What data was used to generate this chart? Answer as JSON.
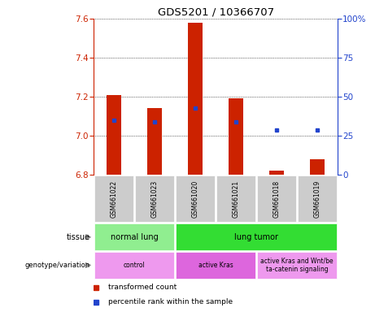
{
  "title": "GDS5201 / 10366707",
  "samples": [
    "GSM661022",
    "GSM661023",
    "GSM661020",
    "GSM661021",
    "GSM661018",
    "GSM661019"
  ],
  "bar_bottoms": [
    6.8,
    6.8,
    6.8,
    6.8,
    6.8,
    6.8
  ],
  "bar_tops": [
    7.21,
    7.14,
    7.58,
    7.19,
    6.82,
    6.88
  ],
  "blue_y": [
    7.08,
    7.07,
    7.14,
    7.07,
    7.03,
    7.03
  ],
  "blue_show": [
    true,
    true,
    true,
    true,
    true,
    true
  ],
  "ylim_left": [
    6.8,
    7.6
  ],
  "yticks_left": [
    6.8,
    7.0,
    7.2,
    7.4,
    7.6
  ],
  "yticks_right": [
    0,
    25,
    50,
    75,
    100
  ],
  "bar_color": "#cc2200",
  "blue_color": "#2244cc",
  "tissue_groups": [
    {
      "label": "normal lung",
      "cols": [
        0,
        1
      ],
      "color": "#90ee90"
    },
    {
      "label": "lung tumor",
      "cols": [
        2,
        3,
        4,
        5
      ],
      "color": "#33dd33"
    }
  ],
  "genotype_groups": [
    {
      "label": "control",
      "cols": [
        0,
        1
      ],
      "color": "#ee99ee"
    },
    {
      "label": "active Kras",
      "cols": [
        2,
        3
      ],
      "color": "#dd66dd"
    },
    {
      "label": "active Kras and Wnt/be\nta-catenin signaling",
      "cols": [
        4,
        5
      ],
      "color": "#ee99ee"
    }
  ],
  "legend_items": [
    {
      "label": "transformed count",
      "color": "#cc2200"
    },
    {
      "label": "percentile rank within the sample",
      "color": "#2244cc"
    }
  ],
  "ylabel_left_color": "#cc2200",
  "ylabel_right_color": "#2244cc",
  "background_color": "#ffffff",
  "bar_width": 0.35
}
